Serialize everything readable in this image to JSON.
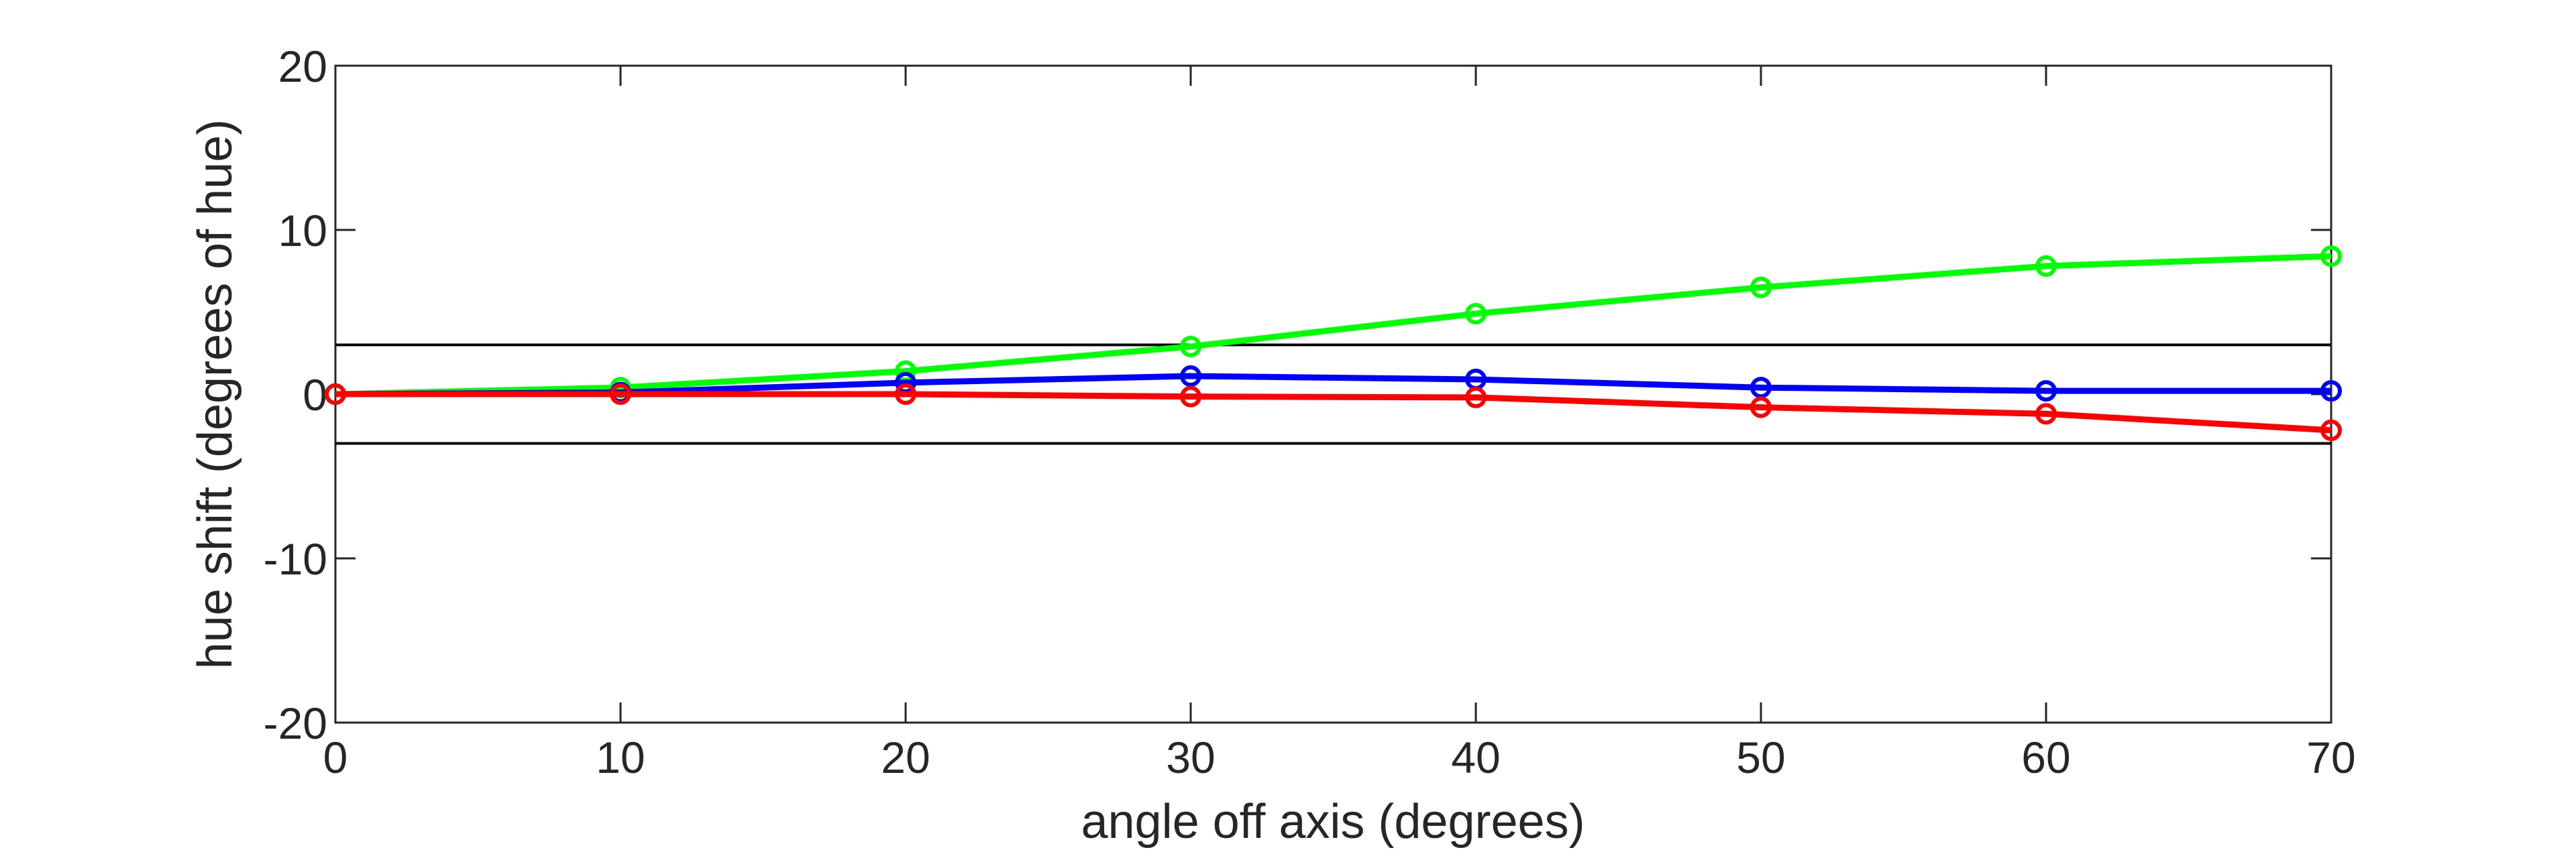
{
  "chart_data": {
    "type": "line",
    "title": "",
    "xlabel": "angle off axis (degrees)",
    "ylabel": "hue shift (degrees of hue)",
    "xlim": [
      0,
      70
    ],
    "ylim": [
      -20,
      20
    ],
    "xticks": [
      0,
      10,
      20,
      30,
      40,
      50,
      60,
      70
    ],
    "yticks": [
      -20,
      -10,
      0,
      10,
      20
    ],
    "xtick_labels": [
      "0",
      "10",
      "20",
      "30",
      "40",
      "50",
      "60",
      "70"
    ],
    "ytick_labels": [
      "-20",
      "-10",
      "0",
      "10",
      "20"
    ],
    "grid": false,
    "x": [
      0,
      10,
      20,
      30,
      40,
      50,
      60,
      70
    ],
    "reference_lines": [
      3,
      -3
    ],
    "series": [
      {
        "name": "green",
        "color": "#00ff00",
        "values": [
          0,
          0.4,
          1.4,
          2.9,
          4.9,
          6.5,
          7.8,
          8.4
        ]
      },
      {
        "name": "blue",
        "color": "#0000ff",
        "values": [
          0,
          0.1,
          0.7,
          1.1,
          0.9,
          0.4,
          0.2,
          0.2
        ]
      },
      {
        "name": "red",
        "color": "#ff0000",
        "values": [
          0,
          0,
          0,
          -0.15,
          -0.2,
          -0.8,
          -1.2,
          -2.2
        ]
      }
    ]
  }
}
